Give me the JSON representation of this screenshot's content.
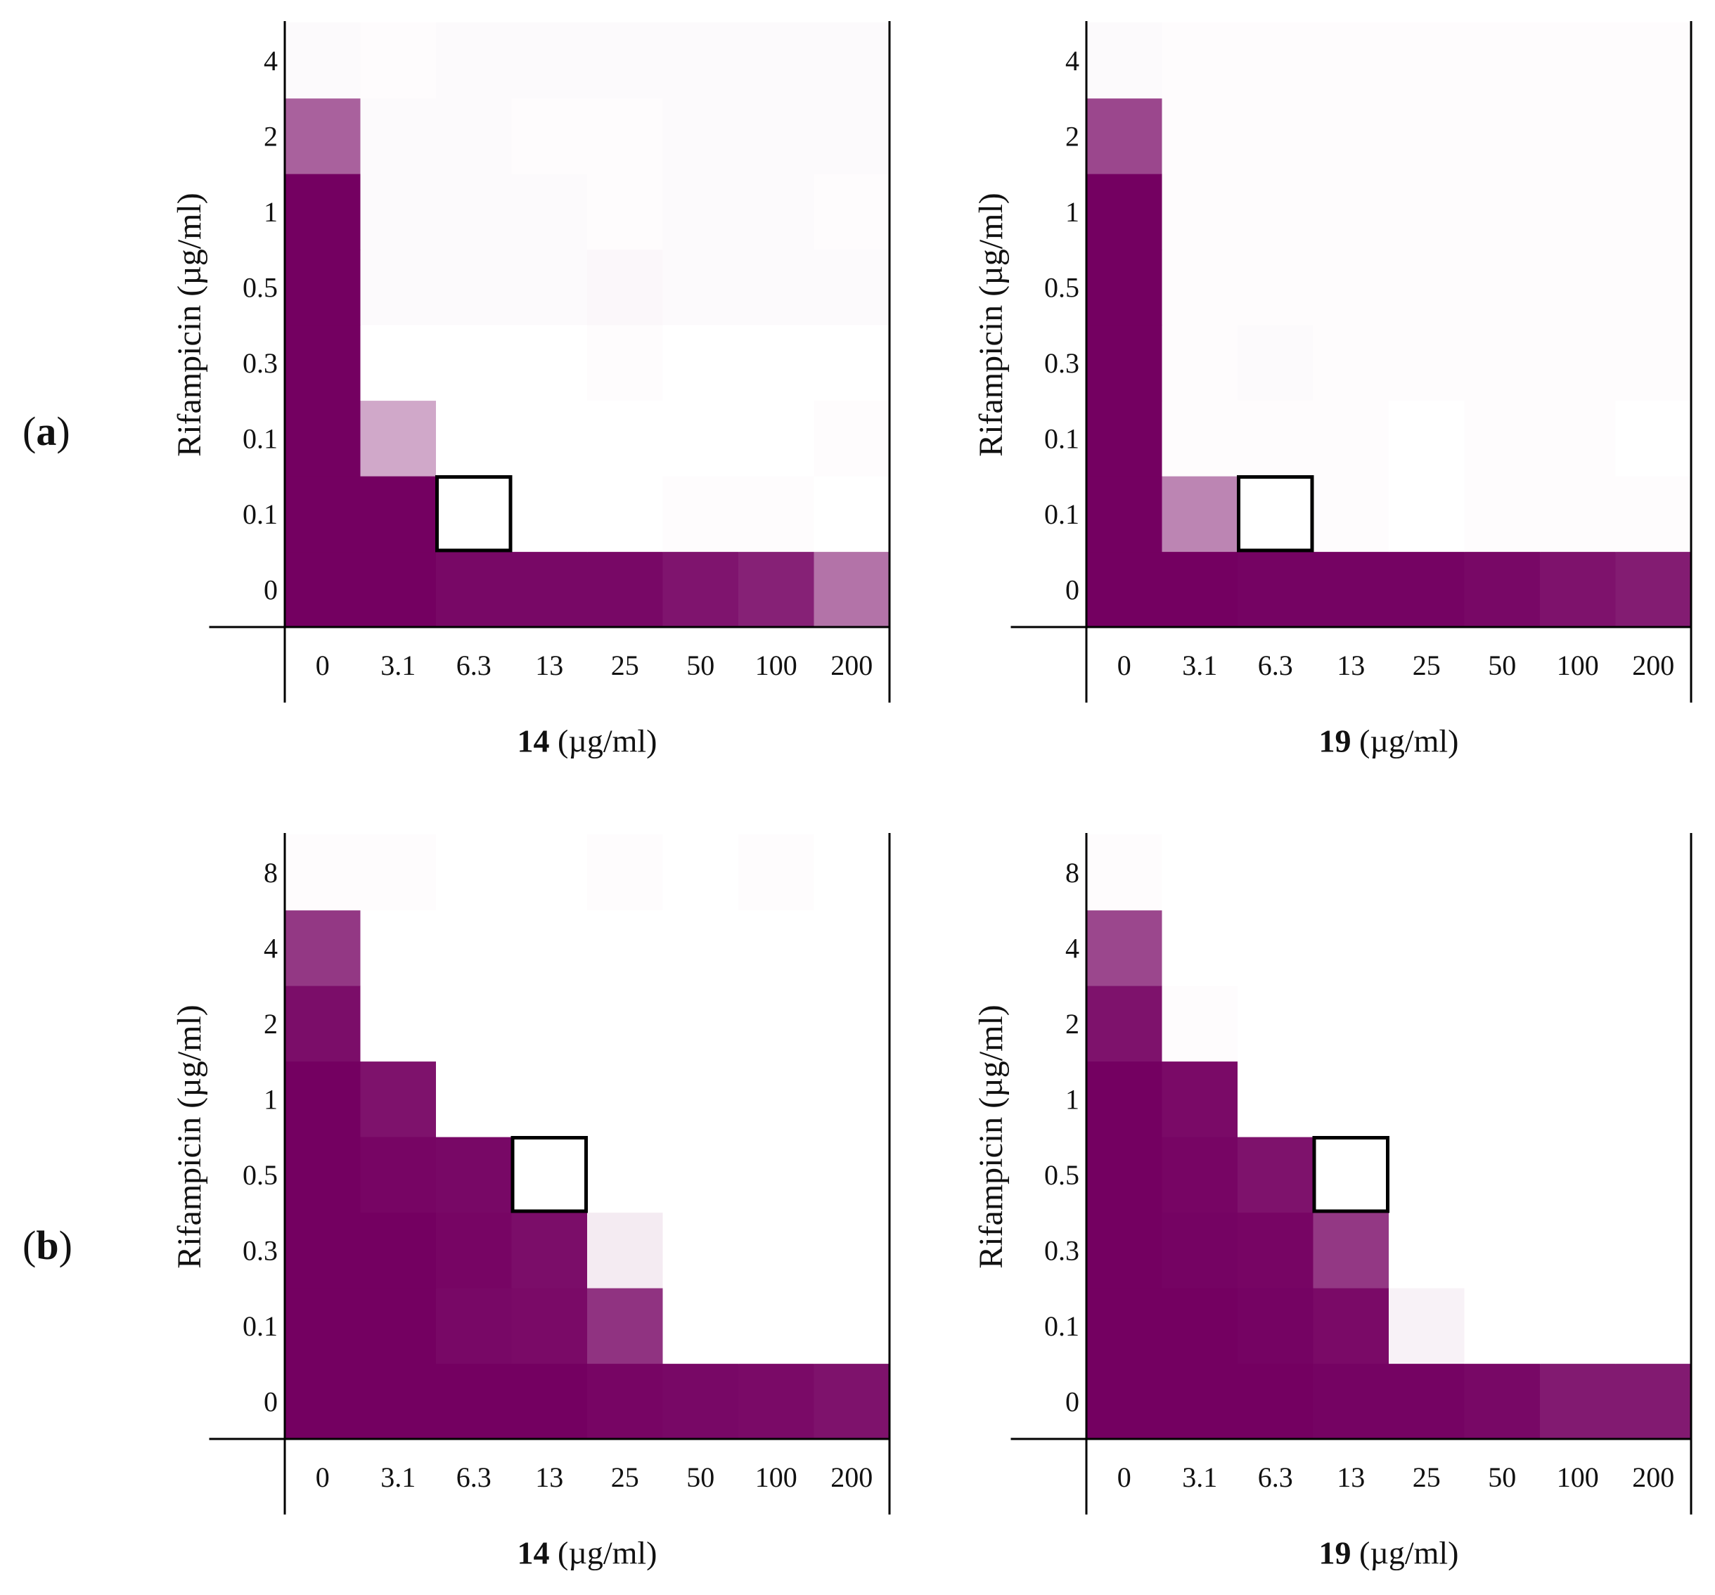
{
  "panels": [
    {
      "label": "a"
    },
    {
      "label": "b"
    }
  ],
  "chart_data": [
    {
      "type": "heatmap",
      "panel": "a",
      "title": "",
      "xlabel_bold": "14",
      "xlabel_unit": "(µg/ml)",
      "ylabel": "Rifampicin (µg/ml)",
      "x": [
        "0",
        "3.1",
        "6.3",
        "13",
        "25",
        "50",
        "100",
        "200"
      ],
      "y": [
        "0",
        "0.1",
        "0.1",
        "0.3",
        "0.5",
        "1",
        "2",
        "4"
      ],
      "color_max": "#740061",
      "values": [
        [
          1.0,
          1.0,
          0.97,
          0.97,
          0.97,
          0.92,
          0.87,
          0.55
        ],
        [
          1.0,
          1.0,
          0.0,
          0.0,
          0.0,
          0.01,
          0.01,
          0.0
        ],
        [
          1.0,
          0.34,
          0.0,
          0.0,
          0.0,
          0.0,
          0.0,
          0.01
        ],
        [
          1.0,
          0.0,
          0.0,
          0.0,
          0.01,
          0.0,
          0.0,
          0.0
        ],
        [
          1.0,
          0.02,
          0.02,
          0.02,
          0.03,
          0.02,
          0.02,
          0.02
        ],
        [
          1.0,
          0.02,
          0.02,
          0.02,
          0.01,
          0.02,
          0.02,
          0.01
        ],
        [
          0.62,
          0.02,
          0.02,
          0.01,
          0.01,
          0.02,
          0.02,
          0.02
        ],
        [
          0.02,
          0.01,
          0.02,
          0.02,
          0.02,
          0.02,
          0.02,
          0.02
        ]
      ],
      "highlight": {
        "x": "6.3",
        "y_index": 1
      }
    },
    {
      "type": "heatmap",
      "panel": "a",
      "title": "",
      "xlabel_bold": "19",
      "xlabel_unit": "(µg/ml)",
      "ylabel": "Rifampicin (µg/ml)",
      "x": [
        "0",
        "3.1",
        "6.3",
        "13",
        "25",
        "50",
        "100",
        "200"
      ],
      "y": [
        "0",
        "0.1",
        "0.1",
        "0.3",
        "0.5",
        "1",
        "2",
        "4"
      ],
      "color_max": "#740061",
      "values": [
        [
          1.0,
          1.0,
          0.99,
          0.99,
          0.99,
          0.97,
          0.93,
          0.89
        ],
        [
          1.0,
          0.48,
          0.0,
          0.01,
          0.0,
          0.01,
          0.01,
          0.01
        ],
        [
          1.0,
          0.01,
          0.01,
          0.01,
          0.0,
          0.01,
          0.01,
          0.0
        ],
        [
          1.0,
          0.01,
          0.02,
          0.01,
          0.01,
          0.01,
          0.01,
          0.01
        ],
        [
          1.0,
          0.01,
          0.01,
          0.01,
          0.01,
          0.01,
          0.01,
          0.01
        ],
        [
          1.0,
          0.01,
          0.01,
          0.01,
          0.01,
          0.01,
          0.01,
          0.01
        ],
        [
          0.72,
          0.01,
          0.01,
          0.01,
          0.01,
          0.01,
          0.01,
          0.01
        ],
        [
          0.02,
          0.01,
          0.01,
          0.01,
          0.01,
          0.01,
          0.01,
          0.01
        ]
      ],
      "highlight": {
        "x": "6.3",
        "y_index": 1
      }
    },
    {
      "type": "heatmap",
      "panel": "b",
      "title": "",
      "xlabel_bold": "14",
      "xlabel_unit": "(µg/ml)",
      "ylabel": "Rifampicin (µg/ml)",
      "x": [
        "0",
        "3.1",
        "6.3",
        "13",
        "25",
        "50",
        "100",
        "200"
      ],
      "y": [
        "0",
        "0.1",
        "0.3",
        "0.5",
        "1",
        "2",
        "4",
        "8"
      ],
      "color_max": "#740061",
      "values": [
        [
          1.0,
          1.0,
          1.0,
          1.0,
          0.98,
          0.97,
          0.96,
          0.93
        ],
        [
          1.0,
          1.0,
          0.97,
          0.96,
          0.8,
          0.0,
          0.0,
          0.0
        ],
        [
          1.0,
          1.0,
          0.98,
          0.95,
          0.08,
          0.0,
          0.0,
          0.0
        ],
        [
          1.0,
          0.98,
          0.97,
          0.0,
          0.0,
          0.0,
          0.0,
          0.0
        ],
        [
          1.0,
          0.93,
          0.0,
          0.0,
          0.0,
          0.0,
          0.0,
          0.0
        ],
        [
          0.95,
          0.0,
          0.0,
          0.0,
          0.0,
          0.0,
          0.0,
          0.0
        ],
        [
          0.78,
          0.0,
          0.0,
          0.0,
          0.0,
          0.0,
          0.0,
          0.0
        ],
        [
          0.01,
          0.01,
          0.0,
          0.0,
          0.01,
          0.0,
          0.01,
          0.0
        ]
      ],
      "highlight": {
        "x": "13",
        "y_index": 3
      }
    },
    {
      "type": "heatmap",
      "panel": "b",
      "title": "",
      "xlabel_bold": "19",
      "xlabel_unit": "(µg/ml)",
      "ylabel": "Rifampicin (µg/ml)",
      "x": [
        "0",
        "3.1",
        "6.3",
        "13",
        "25",
        "50",
        "100",
        "200"
      ],
      "y": [
        "0",
        "0.1",
        "0.3",
        "0.5",
        "1",
        "2",
        "4",
        "8"
      ],
      "color_max": "#740061",
      "values": [
        [
          1.0,
          1.0,
          1.0,
          0.99,
          0.99,
          0.97,
          0.9,
          0.9
        ],
        [
          1.0,
          1.0,
          0.99,
          0.96,
          0.05,
          0.0,
          0.0,
          0.0
        ],
        [
          1.0,
          0.99,
          0.98,
          0.78,
          0.0,
          0.0,
          0.0,
          0.0
        ],
        [
          1.0,
          0.98,
          0.93,
          0.0,
          0.0,
          0.0,
          0.0,
          0.0
        ],
        [
          1.0,
          0.96,
          0.0,
          0.0,
          0.0,
          0.0,
          0.0,
          0.0
        ],
        [
          0.93,
          0.01,
          0.0,
          0.0,
          0.0,
          0.0,
          0.0,
          0.0
        ],
        [
          0.72,
          0.0,
          0.0,
          0.0,
          0.0,
          0.0,
          0.0,
          0.0
        ],
        [
          0.01,
          0.0,
          0.0,
          0.0,
          0.0,
          0.0,
          0.0,
          0.0
        ]
      ],
      "highlight": {
        "x": "13",
        "y_index": 3
      }
    }
  ]
}
